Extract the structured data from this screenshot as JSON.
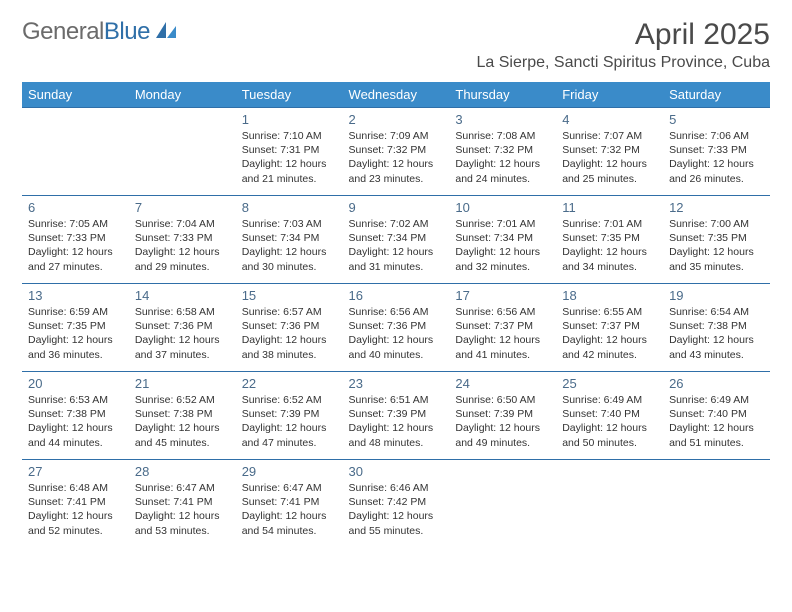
{
  "brand": {
    "part1": "General",
    "part2": "Blue"
  },
  "title": "April 2025",
  "location": "La Sierpe, Sancti Spiritus Province, Cuba",
  "colors": {
    "header_bg": "#3a8bc9",
    "header_text": "#ffffff",
    "border": "#2f6fa8",
    "daynum": "#4a6b8a",
    "body_text": "#333333",
    "brand_gray": "#6b6b6b",
    "brand_blue": "#2f6fa8"
  },
  "typography": {
    "title_fontsize": 30,
    "location_fontsize": 16,
    "dayhead_fontsize": 13,
    "cell_fontsize": 10.5
  },
  "days_of_week": [
    "Sunday",
    "Monday",
    "Tuesday",
    "Wednesday",
    "Thursday",
    "Friday",
    "Saturday"
  ],
  "weeks": [
    [
      null,
      null,
      {
        "n": "1",
        "sr": "Sunrise: 7:10 AM",
        "ss": "Sunset: 7:31 PM",
        "dl": "Daylight: 12 hours and 21 minutes."
      },
      {
        "n": "2",
        "sr": "Sunrise: 7:09 AM",
        "ss": "Sunset: 7:32 PM",
        "dl": "Daylight: 12 hours and 23 minutes."
      },
      {
        "n": "3",
        "sr": "Sunrise: 7:08 AM",
        "ss": "Sunset: 7:32 PM",
        "dl": "Daylight: 12 hours and 24 minutes."
      },
      {
        "n": "4",
        "sr": "Sunrise: 7:07 AM",
        "ss": "Sunset: 7:32 PM",
        "dl": "Daylight: 12 hours and 25 minutes."
      },
      {
        "n": "5",
        "sr": "Sunrise: 7:06 AM",
        "ss": "Sunset: 7:33 PM",
        "dl": "Daylight: 12 hours and 26 minutes."
      }
    ],
    [
      {
        "n": "6",
        "sr": "Sunrise: 7:05 AM",
        "ss": "Sunset: 7:33 PM",
        "dl": "Daylight: 12 hours and 27 minutes."
      },
      {
        "n": "7",
        "sr": "Sunrise: 7:04 AM",
        "ss": "Sunset: 7:33 PM",
        "dl": "Daylight: 12 hours and 29 minutes."
      },
      {
        "n": "8",
        "sr": "Sunrise: 7:03 AM",
        "ss": "Sunset: 7:34 PM",
        "dl": "Daylight: 12 hours and 30 minutes."
      },
      {
        "n": "9",
        "sr": "Sunrise: 7:02 AM",
        "ss": "Sunset: 7:34 PM",
        "dl": "Daylight: 12 hours and 31 minutes."
      },
      {
        "n": "10",
        "sr": "Sunrise: 7:01 AM",
        "ss": "Sunset: 7:34 PM",
        "dl": "Daylight: 12 hours and 32 minutes."
      },
      {
        "n": "11",
        "sr": "Sunrise: 7:01 AM",
        "ss": "Sunset: 7:35 PM",
        "dl": "Daylight: 12 hours and 34 minutes."
      },
      {
        "n": "12",
        "sr": "Sunrise: 7:00 AM",
        "ss": "Sunset: 7:35 PM",
        "dl": "Daylight: 12 hours and 35 minutes."
      }
    ],
    [
      {
        "n": "13",
        "sr": "Sunrise: 6:59 AM",
        "ss": "Sunset: 7:35 PM",
        "dl": "Daylight: 12 hours and 36 minutes."
      },
      {
        "n": "14",
        "sr": "Sunrise: 6:58 AM",
        "ss": "Sunset: 7:36 PM",
        "dl": "Daylight: 12 hours and 37 minutes."
      },
      {
        "n": "15",
        "sr": "Sunrise: 6:57 AM",
        "ss": "Sunset: 7:36 PM",
        "dl": "Daylight: 12 hours and 38 minutes."
      },
      {
        "n": "16",
        "sr": "Sunrise: 6:56 AM",
        "ss": "Sunset: 7:36 PM",
        "dl": "Daylight: 12 hours and 40 minutes."
      },
      {
        "n": "17",
        "sr": "Sunrise: 6:56 AM",
        "ss": "Sunset: 7:37 PM",
        "dl": "Daylight: 12 hours and 41 minutes."
      },
      {
        "n": "18",
        "sr": "Sunrise: 6:55 AM",
        "ss": "Sunset: 7:37 PM",
        "dl": "Daylight: 12 hours and 42 minutes."
      },
      {
        "n": "19",
        "sr": "Sunrise: 6:54 AM",
        "ss": "Sunset: 7:38 PM",
        "dl": "Daylight: 12 hours and 43 minutes."
      }
    ],
    [
      {
        "n": "20",
        "sr": "Sunrise: 6:53 AM",
        "ss": "Sunset: 7:38 PM",
        "dl": "Daylight: 12 hours and 44 minutes."
      },
      {
        "n": "21",
        "sr": "Sunrise: 6:52 AM",
        "ss": "Sunset: 7:38 PM",
        "dl": "Daylight: 12 hours and 45 minutes."
      },
      {
        "n": "22",
        "sr": "Sunrise: 6:52 AM",
        "ss": "Sunset: 7:39 PM",
        "dl": "Daylight: 12 hours and 47 minutes."
      },
      {
        "n": "23",
        "sr": "Sunrise: 6:51 AM",
        "ss": "Sunset: 7:39 PM",
        "dl": "Daylight: 12 hours and 48 minutes."
      },
      {
        "n": "24",
        "sr": "Sunrise: 6:50 AM",
        "ss": "Sunset: 7:39 PM",
        "dl": "Daylight: 12 hours and 49 minutes."
      },
      {
        "n": "25",
        "sr": "Sunrise: 6:49 AM",
        "ss": "Sunset: 7:40 PM",
        "dl": "Daylight: 12 hours and 50 minutes."
      },
      {
        "n": "26",
        "sr": "Sunrise: 6:49 AM",
        "ss": "Sunset: 7:40 PM",
        "dl": "Daylight: 12 hours and 51 minutes."
      }
    ],
    [
      {
        "n": "27",
        "sr": "Sunrise: 6:48 AM",
        "ss": "Sunset: 7:41 PM",
        "dl": "Daylight: 12 hours and 52 minutes."
      },
      {
        "n": "28",
        "sr": "Sunrise: 6:47 AM",
        "ss": "Sunset: 7:41 PM",
        "dl": "Daylight: 12 hours and 53 minutes."
      },
      {
        "n": "29",
        "sr": "Sunrise: 6:47 AM",
        "ss": "Sunset: 7:41 PM",
        "dl": "Daylight: 12 hours and 54 minutes."
      },
      {
        "n": "30",
        "sr": "Sunrise: 6:46 AM",
        "ss": "Sunset: 7:42 PM",
        "dl": "Daylight: 12 hours and 55 minutes."
      },
      null,
      null,
      null
    ]
  ]
}
